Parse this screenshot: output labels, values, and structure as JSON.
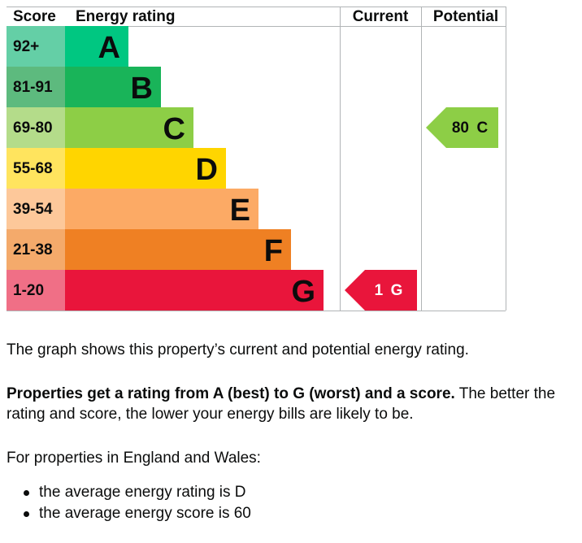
{
  "chart_data": {
    "type": "epc-rating",
    "headers": {
      "score": "Score",
      "rating": "Energy rating",
      "current": "Current",
      "potential": "Potential"
    },
    "bands": [
      {
        "range": "92+",
        "letter": "A",
        "color": "#00c781",
        "score_bg": "#64cfa6"
      },
      {
        "range": "81-91",
        "letter": "B",
        "color": "#19b459",
        "score_bg": "#5dba7e"
      },
      {
        "range": "69-80",
        "letter": "C",
        "color": "#8dce46",
        "score_bg": "#b4dc8a"
      },
      {
        "range": "55-68",
        "letter": "D",
        "color": "#ffd500",
        "score_bg": "#ffe45e"
      },
      {
        "range": "39-54",
        "letter": "E",
        "color": "#fcaa65",
        "score_bg": "#fdc89a"
      },
      {
        "range": "21-38",
        "letter": "F",
        "color": "#ef8023",
        "score_bg": "#f4aa6b"
      },
      {
        "range": "1-20",
        "letter": "G",
        "color": "#e9153b",
        "score_bg": "#f06f86"
      }
    ],
    "current": {
      "score": 1,
      "letter": "G",
      "label": "1 G",
      "color": "#e9153b",
      "text_color": "#ffffff"
    },
    "potential": {
      "score": 80,
      "letter": "C",
      "label": "80 C",
      "color": "#8dce46",
      "text_color": "#0b0c0c"
    }
  },
  "text": {
    "p1": "The graph shows this property’s current and potential energy rating.",
    "p2_bold": "Properties get a rating from A (best) to G (worst) and a score.",
    "p2_rest": " The better the rating and score, the lower your energy bills are likely to be.",
    "p3": "For properties in England and Wales:",
    "bullets": [
      "the average energy rating is D",
      "the average energy score is 60"
    ]
  }
}
